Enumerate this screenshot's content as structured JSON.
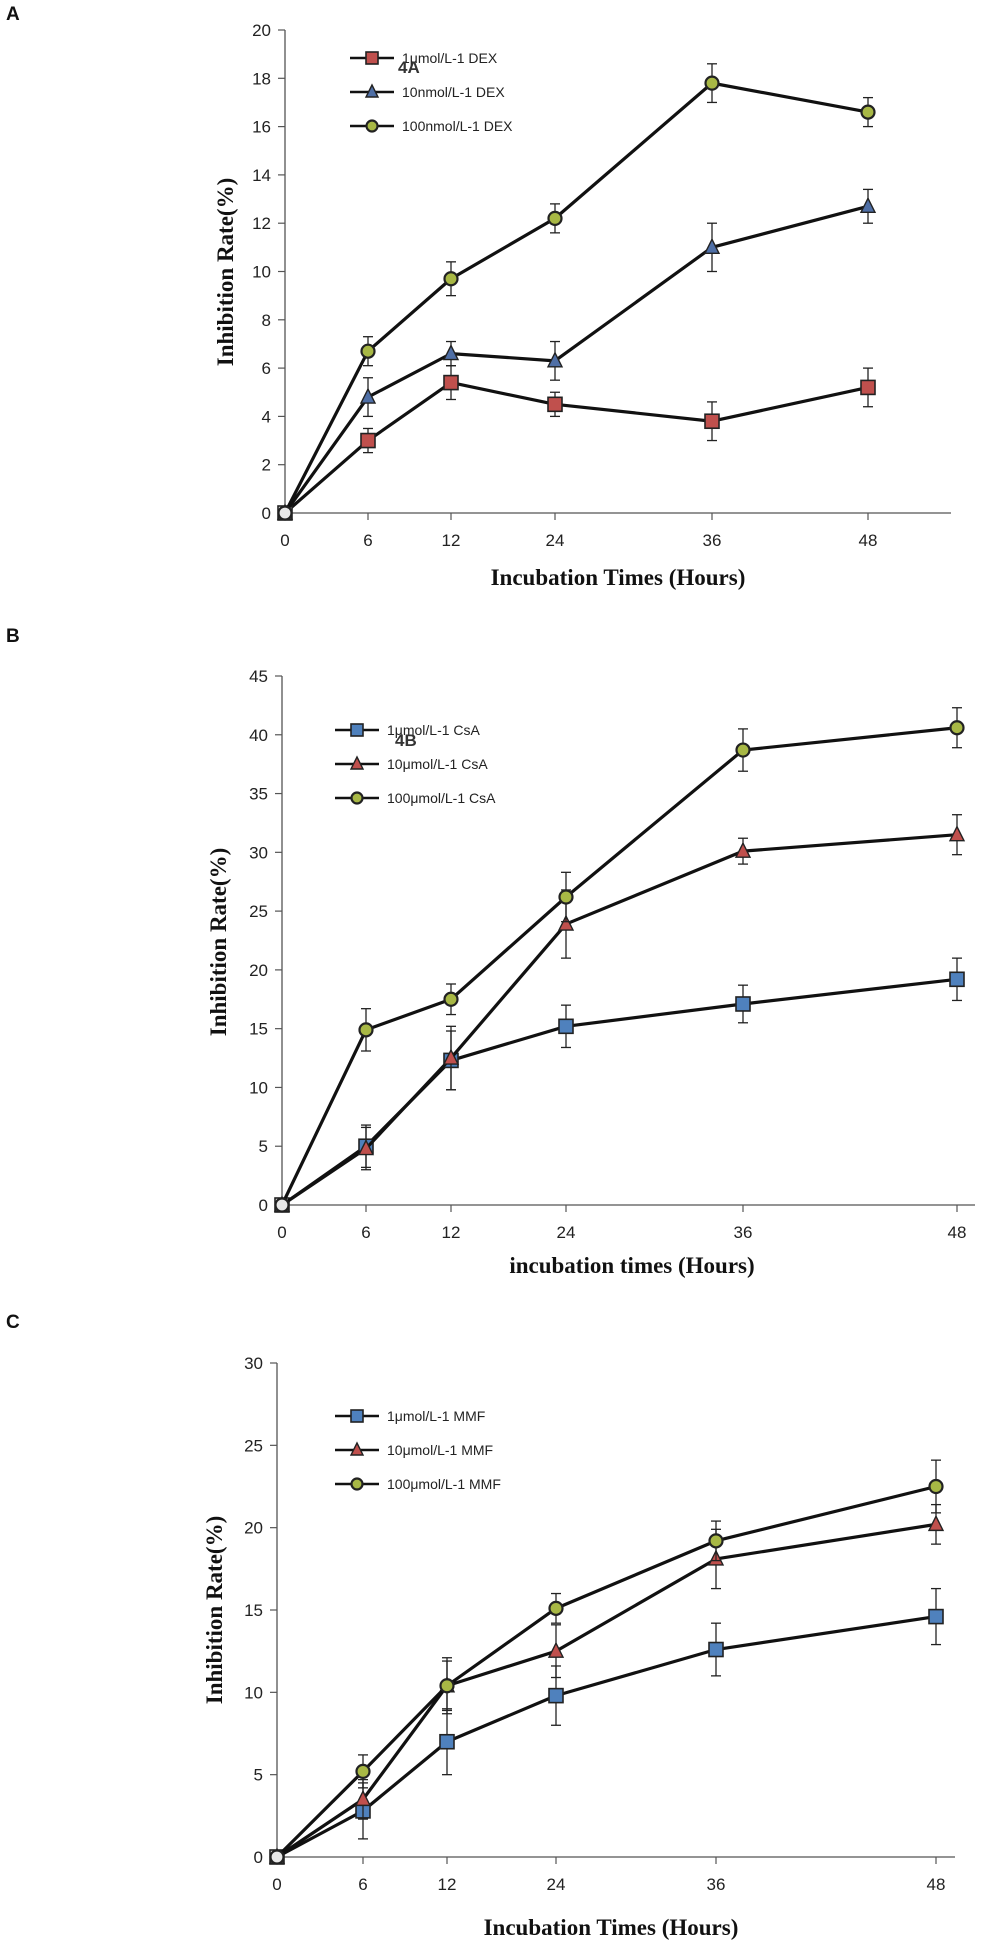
{
  "chart_data": [
    {
      "panel": "A",
      "type": "line",
      "title": "",
      "annotation": "4A",
      "xlabel": "Incubation Times (Hours)",
      "ylabel": "Inhibition  Rate(%)",
      "categories": [
        "0",
        "6",
        "12",
        "24",
        "36",
        "48"
      ],
      "ylim": [
        0,
        20
      ],
      "yticks": [
        0,
        2,
        4,
        6,
        8,
        10,
        12,
        14,
        16,
        18,
        20
      ],
      "legend_position": "top-left",
      "grid": false,
      "series": [
        {
          "name": "1μmol/L-1 DEX",
          "marker": "square",
          "fill": "#c0504d",
          "values": [
            0,
            3.0,
            5.4,
            4.5,
            3.8,
            5.2
          ],
          "errors": [
            0,
            0.5,
            0.7,
            0.5,
            0.8,
            0.8
          ]
        },
        {
          "name": "10nmol/L-1 DEX",
          "marker": "triangle",
          "fill": "#4f6fa6",
          "values": [
            0,
            4.8,
            6.6,
            6.3,
            11.0,
            12.7
          ],
          "errors": [
            0,
            0.8,
            0.5,
            0.8,
            1.0,
            0.7
          ]
        },
        {
          "name": "100nmol/L-1 DEX",
          "marker": "circle",
          "fill": "#a8b845",
          "values": [
            0,
            6.7,
            9.7,
            12.2,
            17.8,
            16.6
          ],
          "errors": [
            0,
            0.6,
            0.7,
            0.6,
            0.8,
            0.6
          ]
        }
      ]
    },
    {
      "panel": "B",
      "type": "line",
      "title": "",
      "annotation": "4B",
      "xlabel": "incubation times (Hours)",
      "ylabel": "Inhibition   Rate(%)",
      "categories": [
        "0",
        "6",
        "12",
        "24",
        "36",
        "48"
      ],
      "ylim": [
        0,
        45
      ],
      "yticks": [
        0,
        5,
        10,
        15,
        20,
        25,
        30,
        35,
        40,
        45
      ],
      "legend_position": "top-left",
      "grid": false,
      "series": [
        {
          "name": "1μmol/L-1 CsA",
          "marker": "square",
          "fill": "#4f81bd",
          "values": [
            0,
            5.0,
            12.3,
            15.2,
            17.1,
            19.2
          ],
          "errors": [
            0,
            1.8,
            2.5,
            1.8,
            1.6,
            1.8
          ]
        },
        {
          "name": "10μmol/L-1 CsA",
          "marker": "triangle",
          "fill": "#c0504d",
          "values": [
            0,
            4.8,
            12.5,
            23.9,
            30.1,
            31.5
          ],
          "errors": [
            0,
            1.8,
            2.7,
            2.9,
            1.1,
            1.7
          ]
        },
        {
          "name": "100μmol/L-1 CsA",
          "marker": "circle",
          "fill": "#a8b845",
          "values": [
            0,
            14.9,
            17.5,
            26.2,
            38.7,
            40.6
          ],
          "errors": [
            0,
            1.8,
            1.3,
            2.1,
            1.8,
            1.7
          ]
        }
      ]
    },
    {
      "panel": "C",
      "type": "line",
      "title": "",
      "xlabel": "Incubation Times (Hours)",
      "ylabel": "Inhibition  Rate(%)",
      "categories": [
        "0",
        "6",
        "12",
        "24",
        "36",
        "48"
      ],
      "ylim": [
        0,
        30
      ],
      "yticks": [
        0,
        5,
        10,
        15,
        20,
        25,
        30
      ],
      "legend_position": "top-left",
      "grid": false,
      "series": [
        {
          "name": "1μmol/L-1 MMF",
          "marker": "square",
          "fill": "#4f81bd",
          "values": [
            0,
            2.8,
            7.0,
            9.8,
            12.6,
            14.6
          ],
          "errors": [
            0,
            1.7,
            2.0,
            1.8,
            1.6,
            1.7
          ]
        },
        {
          "name": "10μmol/L-1 MMF",
          "marker": "triangle",
          "fill": "#c0504d",
          "values": [
            0,
            3.5,
            10.4,
            12.5,
            18.1,
            20.2
          ],
          "errors": [
            0,
            1.2,
            1.5,
            1.6,
            1.8,
            1.2
          ]
        },
        {
          "name": "100μmol/L-1 MMF",
          "marker": "circle",
          "fill": "#a8b845",
          "values": [
            0,
            5.2,
            10.4,
            15.1,
            19.2,
            22.5
          ],
          "errors": [
            0,
            1.0,
            1.7,
            0.9,
            1.2,
            1.6
          ]
        }
      ]
    }
  ]
}
